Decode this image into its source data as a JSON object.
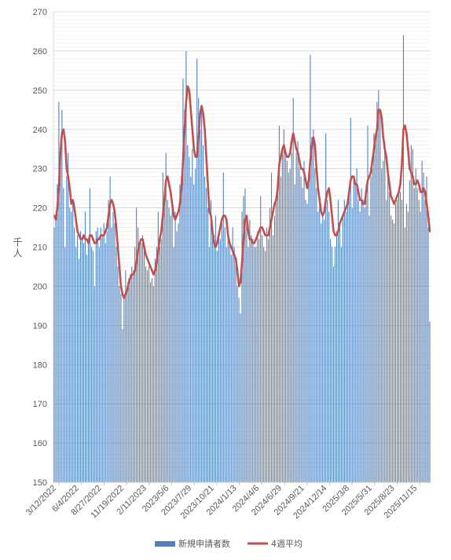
{
  "chart_data": {
    "type": "bar",
    "ylabel": "千人",
    "ylim": [
      150,
      270
    ],
    "y_ticks": [
      150,
      160,
      170,
      180,
      190,
      200,
      210,
      220,
      230,
      240,
      250,
      260,
      270
    ],
    "x_tick_labels": [
      "3/12/2022",
      "6/4/2022",
      "8/27/2022",
      "11/19/2022",
      "2/11/2023",
      "2023/5/6",
      "2023/7/29",
      "2023/10/21",
      "2024/1/13",
      "2024/4/6",
      "2024/6/29",
      "2024/9/21",
      "2024/12/14",
      "2025/3/8",
      "2025/5/31",
      "2025/8/23",
      "2025/11/15"
    ],
    "grid": "horizontal",
    "legend_position": "bottom",
    "colors": {
      "bars": "#4f81bd",
      "line": "#c0504d"
    },
    "series": [
      {
        "name": "新規申請者数",
        "type": "bar",
        "values": [
          215,
          218,
          226,
          247,
          233,
          245,
          225,
          210,
          228,
          234,
          220,
          219,
          222,
          215,
          210,
          213,
          207,
          214,
          212,
          211,
          219,
          208,
          211,
          225,
          210,
          209,
          200,
          214,
          215,
          210,
          215,
          213,
          216,
          211,
          214,
          222,
          228,
          215,
          219,
          216,
          210,
          205,
          200,
          198,
          189,
          197,
          204,
          199,
          202,
          203,
          205,
          204,
          210,
          220,
          215,
          210,
          211,
          213,
          209,
          205,
          204,
          205,
          201,
          202,
          200,
          207,
          210,
          219,
          210,
          212,
          229,
          222,
          234,
          222,
          220,
          218,
          221,
          210,
          219,
          214,
          216,
          226,
          228,
          253,
          245,
          260,
          236,
          233,
          228,
          235,
          226,
          230,
          258,
          248,
          240,
          245,
          236,
          228,
          225,
          220,
          210,
          222,
          215,
          213,
          218,
          209,
          214,
          212,
          216,
          229,
          215,
          210,
          213,
          212,
          208,
          215,
          210,
          207,
          200,
          197,
          193,
          219,
          223,
          225,
          216,
          210,
          217,
          213,
          212,
          210,
          210,
          214,
          212,
          223,
          213,
          210,
          209,
          215,
          212,
          220,
          229,
          213,
          218,
          222,
          228,
          241,
          228,
          235,
          240,
          234,
          232,
          229,
          230,
          234,
          248,
          226,
          234,
          237,
          230,
          228,
          225,
          232,
          222,
          221,
          228,
          259,
          238,
          240,
          230,
          225,
          219,
          221,
          216,
          218,
          217,
          239,
          222,
          219,
          212,
          210,
          205,
          210,
          214,
          222,
          216,
          210,
          218,
          222,
          219,
          221,
          224,
          243,
          220,
          228,
          226,
          230,
          222,
          219,
          225,
          222,
          220,
          226,
          241,
          218,
          228,
          230,
          239,
          237,
          247,
          250,
          245,
          230,
          232,
          237,
          222,
          228,
          224,
          218,
          217,
          216,
          221,
          222,
          225,
          224,
          222,
          264,
          215,
          221,
          219,
          227,
          236,
          235,
          225,
          230,
          225,
          222,
          219,
          232,
          229,
          222,
          228,
          215,
          191
        ]
      },
      {
        "name": "4週平均",
        "type": "line",
        "values": [
          218,
          217,
          220,
          225,
          234,
          239,
          240,
          237,
          230,
          228,
          225,
          221,
          222,
          220,
          217,
          214,
          213,
          212,
          212,
          213,
          212,
          212,
          211,
          213,
          213,
          212,
          211,
          211,
          212,
          212,
          213,
          213,
          213,
          214,
          215,
          218,
          221,
          222,
          221,
          219,
          215,
          210,
          205,
          200,
          198,
          197,
          198,
          199,
          201,
          202,
          203,
          203,
          204,
          206,
          209,
          211,
          212,
          212,
          210,
          208,
          207,
          206,
          205,
          204,
          203,
          204,
          206,
          209,
          212,
          214,
          218,
          222,
          227,
          228,
          226,
          224,
          221,
          218,
          217,
          218,
          219,
          221,
          225,
          232,
          240,
          247,
          251,
          250,
          245,
          240,
          235,
          233,
          233,
          238,
          244,
          246,
          244,
          240,
          233,
          226,
          219,
          218,
          214,
          211,
          210,
          211,
          213,
          215,
          217,
          218,
          218,
          217,
          213,
          211,
          210,
          209,
          208,
          207,
          204,
          200,
          201,
          206,
          212,
          217,
          218,
          214,
          212,
          212,
          211,
          211,
          212,
          213,
          214,
          215,
          215,
          214,
          213,
          213,
          213,
          215,
          217,
          219,
          221,
          222,
          225,
          231,
          233,
          235,
          236,
          234,
          233,
          233,
          234,
          237,
          239,
          237,
          235,
          234,
          232,
          230,
          230,
          229,
          227,
          225,
          227,
          232,
          236,
          238,
          236,
          230,
          225,
          222,
          219,
          218,
          219,
          222,
          224,
          225,
          222,
          218,
          214,
          213,
          213,
          214,
          216,
          217,
          218,
          219,
          220,
          221,
          224,
          227,
          228,
          228,
          226,
          226,
          224,
          222,
          222,
          221,
          221,
          224,
          227,
          228,
          229,
          232,
          235,
          238,
          240,
          245,
          245,
          243,
          238,
          235,
          233,
          229,
          226,
          223,
          222,
          221,
          222,
          223,
          224,
          226,
          231,
          240,
          241,
          239,
          235,
          230,
          229,
          228,
          226,
          226,
          227,
          226,
          224,
          224,
          225,
          224,
          221,
          218,
          214
        ]
      }
    ]
  }
}
